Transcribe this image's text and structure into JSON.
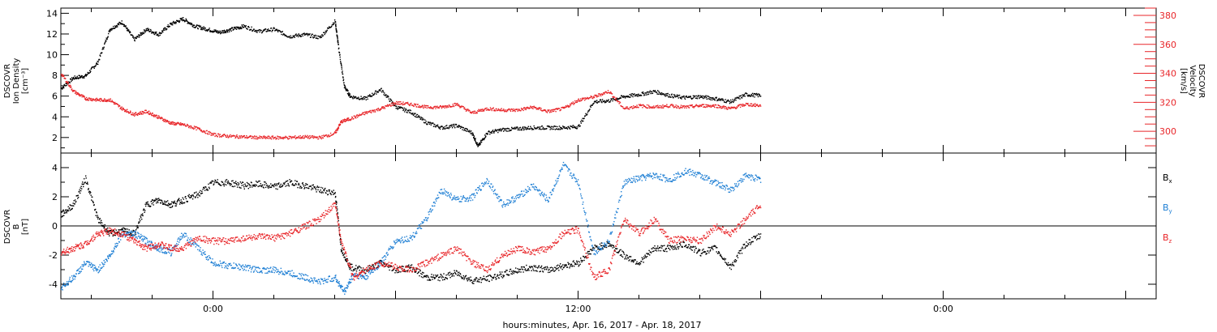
{
  "chart_data": [
    {
      "type": "scatter",
      "xlabel": "hours:minutes, Apr. 16, 2017 - Apr. 18, 2017",
      "x_tick_labels": [
        "0:00",
        "12:00",
        "0:00"
      ],
      "x_tick_hours": [
        0,
        12,
        24
      ],
      "xlim_hours": [
        -5,
        31
      ],
      "axis_left": {
        "label_lines": [
          "DSCOVR",
          "Ion Density",
          "[cm⁻³]"
        ],
        "ylim": [
          0.5,
          14.5
        ],
        "ticks": [
          2,
          4,
          6,
          8,
          10,
          12,
          14
        ],
        "tick_labels": [
          "2",
          "4",
          "6",
          "8",
          "10",
          "12",
          "14"
        ]
      },
      "axis_right": {
        "label_lines": [
          "DSCOVR",
          "Velocity",
          "[km/s]"
        ],
        "ylim": [
          285,
          385
        ],
        "ticks": [
          300,
          320,
          340,
          360,
          380
        ],
        "tick_labels": [
          "300",
          "320",
          "340",
          "360",
          "380"
        ],
        "color": "#e8262a"
      },
      "series": [
        {
          "color": "#000000",
          "axis": "left",
          "x": [
            -5,
            -4.6,
            -4.2,
            -3.8,
            -3.4,
            -3,
            -2.6,
            -2.2,
            -1.8,
            -1.4,
            -1,
            -0.6,
            -0.2,
            0.2,
            0.6,
            1,
            1.5,
            2,
            2.5,
            3,
            3.5,
            4,
            4.1,
            4.3,
            4.5,
            5,
            5.5,
            6,
            6.5,
            7,
            7.5,
            8,
            8.5,
            8.7,
            9,
            9.5,
            10,
            10.5,
            11,
            11.5,
            12,
            12.5,
            13,
            13.5,
            14,
            14.5,
            15,
            15.5,
            16,
            16.5,
            17,
            17.5,
            18
          ],
          "y": [
            6.8,
            7.8,
            8,
            9.3,
            12.5,
            13.2,
            11.5,
            12.5,
            12,
            13,
            13.5,
            12.8,
            12.5,
            12.2,
            12.5,
            12.8,
            12.3,
            12.5,
            11.8,
            12,
            11.7,
            13.3,
            11,
            7,
            6,
            5.8,
            6.7,
            5,
            4.5,
            3.5,
            3,
            3.2,
            2.5,
            1.2,
            2.5,
            2.8,
            2.9,
            3,
            3,
            3,
            3.1,
            5.5,
            5.6,
            6,
            6.2,
            6.5,
            6.1,
            5.9,
            6,
            5.8,
            5.5,
            6.2,
            6.1
          ]
        },
        {
          "color": "#e8262a",
          "axis": "right",
          "x": [
            -5,
            -4.6,
            -4.2,
            -3.8,
            -3.4,
            -3,
            -2.6,
            -2.2,
            -1.8,
            -1.4,
            -1,
            -0.5,
            0,
            0.5,
            1,
            1.5,
            2,
            2.5,
            3,
            3.5,
            4,
            4.2,
            4.5,
            5,
            5.5,
            6,
            6.5,
            7,
            7.5,
            8,
            8.5,
            9,
            9.5,
            10,
            10.5,
            11,
            11.5,
            12,
            12.5,
            13,
            13.5,
            14,
            14.5,
            15,
            15.5,
            16,
            16.5,
            17,
            17.5,
            18
          ],
          "y": [
            340,
            328,
            323,
            322,
            322,
            316,
            312,
            314,
            310,
            306,
            305,
            302,
            298,
            297,
            296.5,
            296,
            296,
            296,
            296.5,
            296,
            299,
            307,
            309,
            313,
            316,
            320,
            319,
            317,
            317,
            319,
            313,
            316,
            315,
            315,
            317,
            314,
            316,
            322,
            324,
            328,
            316,
            318,
            317,
            318,
            317,
            318,
            318,
            316,
            319,
            318
          ]
        }
      ]
    },
    {
      "type": "scatter",
      "xlabel": "hours:minutes, Apr. 16, 2017 - Apr. 18, 2017",
      "x_tick_labels": [
        "0:00",
        "12:00",
        "0:00"
      ],
      "x_tick_hours": [
        0,
        12,
        24
      ],
      "xlim_hours": [
        -5,
        31
      ],
      "axis_left": {
        "label_lines": [
          "DSCOVR",
          "B",
          "[nT]"
        ],
        "ylim": [
          -5,
          5
        ],
        "ticks": [
          -4,
          -2,
          0,
          2,
          4
        ],
        "tick_labels": [
          "-4",
          "-2",
          "0",
          "2",
          "4"
        ]
      },
      "zero_line": true,
      "legend": [
        "Bx",
        "By",
        "Bz"
      ],
      "series": [
        {
          "name": "Bx",
          "color": "#000000",
          "x": [
            -5,
            -4.6,
            -4.2,
            -3.8,
            -3.4,
            -3,
            -2.6,
            -2.2,
            -1.8,
            -1.4,
            -1,
            -0.5,
            0,
            0.5,
            1,
            1.5,
            2,
            2.5,
            3,
            3.5,
            4,
            4.2,
            4.5,
            5,
            5.5,
            6,
            6.5,
            7,
            7.5,
            8,
            8.5,
            9,
            9.5,
            10,
            10.5,
            11,
            11.5,
            12,
            12.5,
            13,
            13.5,
            14,
            14.5,
            15,
            15.5,
            16,
            16.5,
            17,
            17.5,
            18
          ],
          "y": [
            0.8,
            1.5,
            3.3,
            0.5,
            -0.5,
            -0.3,
            -0.5,
            1.5,
            1.8,
            1.5,
            1.8,
            2.2,
            3,
            3,
            2.8,
            2.9,
            2.7,
            3,
            2.8,
            2.5,
            2.3,
            -1.5,
            -2.8,
            -3,
            -2.5,
            -3,
            -2.8,
            -3.5,
            -3.5,
            -3.2,
            -3.7,
            -3.6,
            -3.3,
            -3,
            -2.8,
            -3,
            -2.7,
            -2.5,
            -1.5,
            -1.2,
            -2,
            -2.5,
            -1.5,
            -1.5,
            -1.2,
            -1.8,
            -1.5,
            -2.8,
            -1.2,
            -0.6
          ]
        },
        {
          "name": "By",
          "color": "#1f7fd4",
          "x": [
            -5,
            -4.6,
            -4.2,
            -3.8,
            -3.4,
            -3,
            -2.6,
            -2.2,
            -1.8,
            -1.4,
            -1,
            -0.5,
            0,
            0.5,
            1,
            1.5,
            2,
            2.5,
            3,
            3.5,
            4,
            4.3,
            4.6,
            5,
            5.5,
            6,
            6.5,
            7,
            7.5,
            8,
            8.5,
            9,
            9.5,
            10,
            10.5,
            11,
            11.5,
            12,
            12.5,
            13,
            13.5,
            14,
            14.5,
            15,
            15.5,
            16,
            16.5,
            17,
            17.5,
            18
          ],
          "y": [
            -4.2,
            -3.5,
            -2.5,
            -3,
            -2,
            -0.5,
            -0.5,
            -1,
            -1.5,
            -1.8,
            -0.5,
            -1.5,
            -2.5,
            -2.7,
            -2.8,
            -3,
            -3,
            -3.2,
            -3.5,
            -3.8,
            -3.5,
            -4.5,
            -3.3,
            -3.5,
            -2.5,
            -1,
            -0.8,
            0.5,
            2.5,
            1.8,
            2,
            3.2,
            1.5,
            2,
            2.8,
            1.8,
            4.2,
            3,
            -1.8,
            -1,
            3,
            3.3,
            3.5,
            3.2,
            3.8,
            3.5,
            3,
            2.5,
            3.5,
            3.2
          ]
        },
        {
          "name": "Bz",
          "color": "#e8262a",
          "x": [
            -5,
            -4.6,
            -4.2,
            -3.8,
            -3.4,
            -3,
            -2.6,
            -2.2,
            -1.8,
            -1.4,
            -1,
            -0.5,
            0,
            0.5,
            1,
            1.5,
            2,
            2.5,
            3,
            3.5,
            4,
            4.2,
            4.6,
            5,
            5.5,
            6,
            6.5,
            7,
            7.5,
            8,
            8.5,
            9,
            9.5,
            10,
            10.5,
            11,
            11.5,
            12,
            12.5,
            13,
            13.5,
            14,
            14.5,
            15,
            15.5,
            16,
            16.5,
            17,
            17.5,
            18
          ],
          "y": [
            -1.8,
            -1.5,
            -1.2,
            -0.5,
            -0.3,
            -0.5,
            -1,
            -1.5,
            -1.2,
            -1.5,
            -1.5,
            -0.8,
            -1,
            -1,
            -0.8,
            -0.7,
            -0.8,
            -0.5,
            0,
            0.5,
            1.5,
            -1,
            -3.5,
            -3,
            -2.5,
            -2.8,
            -3,
            -2.5,
            -2,
            -1.5,
            -2.5,
            -3,
            -2,
            -1.5,
            -1.8,
            -1.5,
            -0.5,
            -0.2,
            -3.5,
            -3,
            0.5,
            -0.5,
            0.5,
            -1,
            -0.8,
            -1,
            0,
            -0.5,
            0.5,
            1.5
          ]
        }
      ]
    }
  ]
}
